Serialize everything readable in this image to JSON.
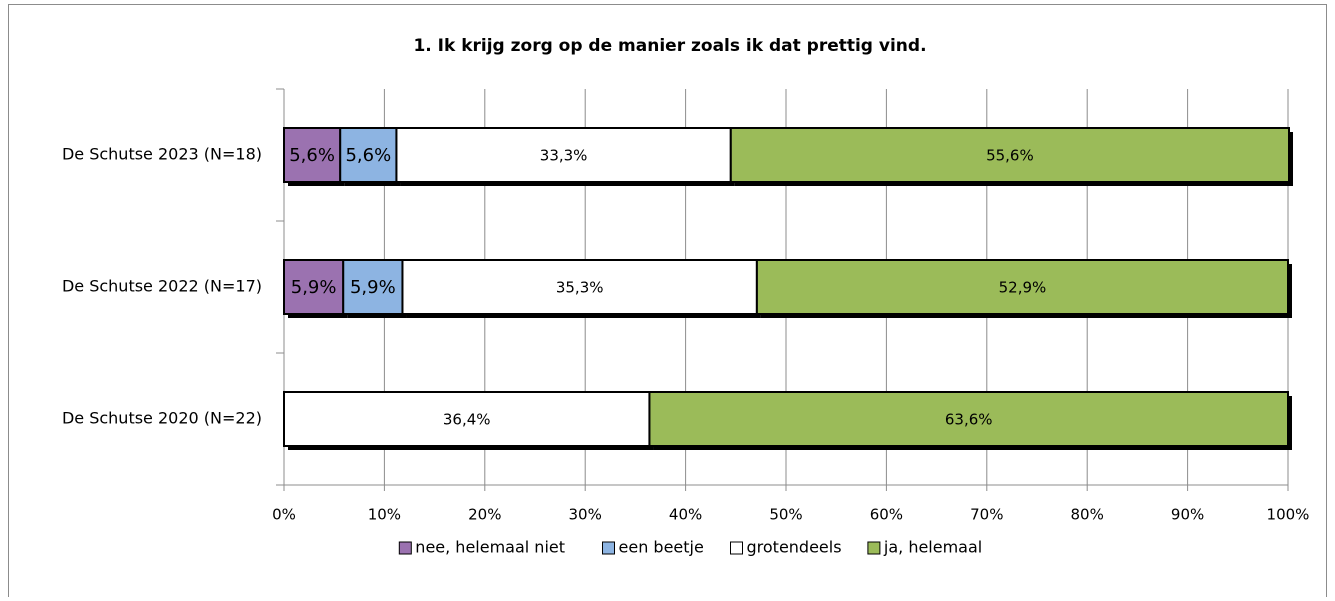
{
  "chart_data": {
    "type": "bar",
    "orientation": "horizontal",
    "stacked": true,
    "title": "1. Ik krijg zorg op de manier zoals ik dat prettig vind.",
    "categories": [
      "De Schutse 2023 (N=18)",
      "De Schutse 2022 (N=17)",
      "De Schutse 2020 (N=22)"
    ],
    "series": [
      {
        "name": "nee, helemaal niet",
        "color": "#9b72b0",
        "values": [
          5.6,
          5.9,
          null
        ],
        "value_labels": [
          "5,6%",
          "5,9%",
          null
        ]
      },
      {
        "name": "een beetje",
        "color": "#8db4e2",
        "values": [
          5.6,
          5.9,
          null
        ],
        "value_labels": [
          "5,6%",
          "5,9%",
          null
        ]
      },
      {
        "name": "grotendeels",
        "color": "#ffffff",
        "values": [
          33.3,
          35.3,
          36.4
        ],
        "value_labels": [
          "33,3%",
          "35,3%",
          "36,4%"
        ]
      },
      {
        "name": "ja, helemaal",
        "color": "#9bbb59",
        "values": [
          55.6,
          52.9,
          63.6
        ],
        "value_labels": [
          "55,6%",
          "52,9%",
          "63,6%"
        ]
      }
    ],
    "xlim": [
      0,
      100
    ],
    "xticks": [
      {
        "value": 0,
        "label": "0%"
      },
      {
        "value": 10,
        "label": "10%"
      },
      {
        "value": 20,
        "label": "20%"
      },
      {
        "value": 30,
        "label": "30%"
      },
      {
        "value": 40,
        "label": "40%"
      },
      {
        "value": 50,
        "label": "50%"
      },
      {
        "value": 60,
        "label": "60%"
      },
      {
        "value": 70,
        "label": "70%"
      },
      {
        "value": 80,
        "label": "80%"
      },
      {
        "value": 90,
        "label": "90%"
      },
      {
        "value": 100,
        "label": "100%"
      }
    ],
    "grid": true,
    "legend": "bottom"
  }
}
